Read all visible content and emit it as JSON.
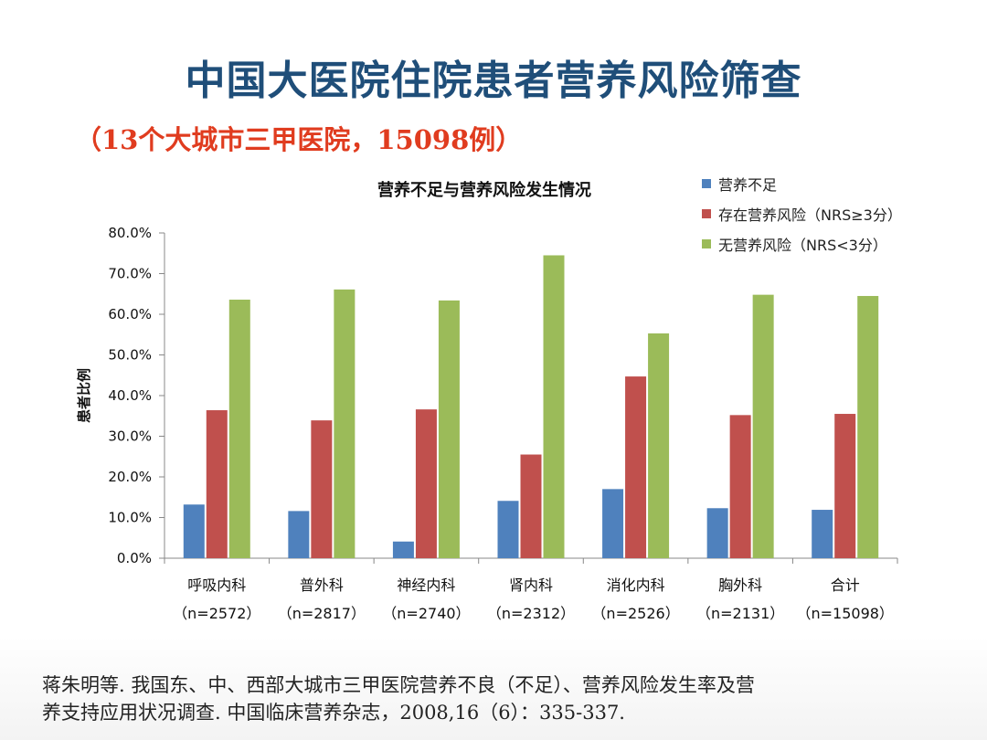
{
  "slide": {
    "title": "中国大医院住院患者营养风险筛查",
    "subtitle": "（13个大城市三甲医院，15098例）",
    "citation_line1": "蒋朱明等. 我国东、中、西部大城市三甲医院营养不良（不足）、营养风险发生率及营",
    "citation_line2": "养支持应用状况调查. 中国临床营养杂志，2008,16（6）：335-337."
  },
  "chart_data": {
    "type": "bar",
    "title": "营养不足与营养风险发生情况",
    "ylabel": "患者比例",
    "xlabel": "",
    "ylim": [
      0,
      80
    ],
    "yticks": [
      0,
      10,
      20,
      30,
      40,
      50,
      60,
      70,
      80
    ],
    "ytick_labels": [
      "0.0%",
      "10.0%",
      "20.0%",
      "30.0%",
      "40.0%",
      "50.0%",
      "60.0%",
      "70.0%",
      "80.0%"
    ],
    "legend_position": "top-right",
    "categories": [
      "呼吸内科",
      "普外科",
      "神经内科",
      "肾内科",
      "消化内科",
      "胸外科",
      "合计"
    ],
    "category_counts": [
      "（n=2572）",
      "（n=2817）",
      "（n=2740）",
      "（n=2312）",
      "（n=2526）",
      "（n=2131）",
      "（n=15098）"
    ],
    "series": [
      {
        "name": "营养不足",
        "color": "#4f81bd",
        "values": [
          13.2,
          11.6,
          4.1,
          14.1,
          17.0,
          12.3,
          11.9
        ]
      },
      {
        "name": "存在营养风险（NRS≥3分）",
        "color": "#c0504d",
        "values": [
          36.4,
          33.9,
          36.6,
          25.5,
          44.7,
          35.2,
          35.5
        ]
      },
      {
        "name": "无营养风险（NRS<3分）",
        "color": "#9bbb59",
        "values": [
          63.6,
          66.1,
          63.4,
          74.5,
          55.3,
          64.8,
          64.5
        ]
      }
    ]
  }
}
